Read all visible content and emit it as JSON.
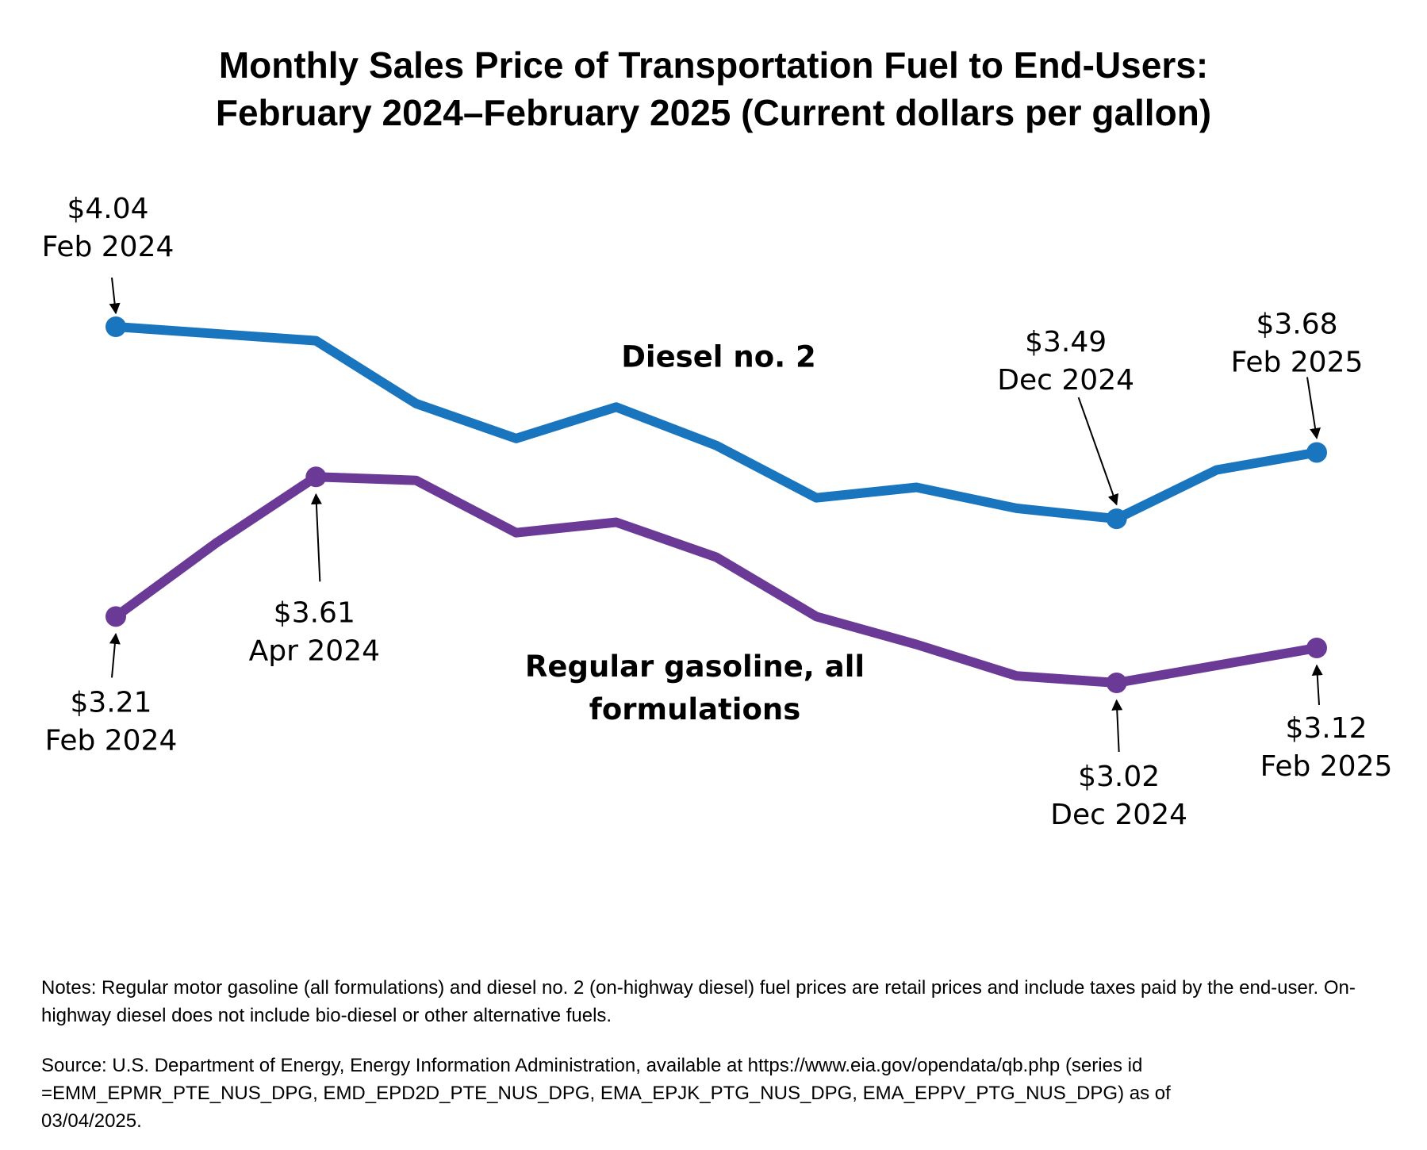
{
  "chart_data": {
    "type": "line",
    "title": "Monthly Sales Price of Transportation Fuel to End-Users: February 2024–February 2025 (Current dollars per gallon)",
    "categories": [
      "Feb 2024",
      null,
      "Apr 2024",
      null,
      null,
      null,
      null,
      null,
      null,
      null,
      "Dec 2024",
      null,
      "Feb 2025"
    ],
    "series": [
      {
        "name": "Diesel no. 2",
        "color": "#1a75bf",
        "values": [
          4.04,
          4.02,
          4.0,
          3.82,
          3.72,
          3.81,
          3.7,
          3.55,
          3.58,
          3.52,
          3.49,
          3.63,
          3.68
        ],
        "value_labels": [
          "$4.04",
          null,
          null,
          null,
          null,
          null,
          null,
          null,
          null,
          null,
          "$3.49",
          null,
          "$3.68"
        ]
      },
      {
        "name": "Regular gasoline, all formulations",
        "color": "#6b3a96",
        "values": [
          3.21,
          3.42,
          3.61,
          3.6,
          3.45,
          3.48,
          3.38,
          3.21,
          3.13,
          3.04,
          3.02,
          3.07,
          3.12
        ],
        "value_labels": [
          "$3.21",
          null,
          "$3.61",
          null,
          null,
          null,
          null,
          null,
          null,
          null,
          "$3.02",
          null,
          "$3.12"
        ]
      }
    ],
    "notes": "Notes: Regular motor gasoline (all formulations) and diesel no. 2 (on-highway diesel) fuel prices are retail prices and include taxes paid by the end-user. On-highway diesel does not include bio-diesel or other alternative fuels.",
    "source": "Source: U.S. Department of Energy, Energy Information Administration, available at https://www.eia.gov/opendata/qb.php (series id =EMM_EPMR_PTE_NUS_DPG, EMD_EPD2D_PTE_NUS_DPG, EMA_EPJK_PTG_NUS_DPG, EMA_EPPV_PTG_NUS_DPG) as of 03/04/2025."
  }
}
